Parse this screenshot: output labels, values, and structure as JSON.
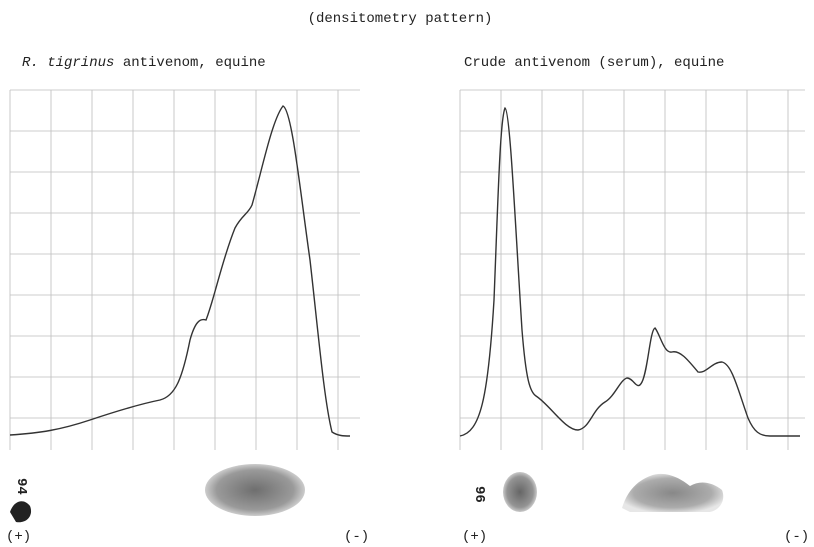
{
  "header": {
    "title": "(densitometry pattern)"
  },
  "panels": [
    {
      "title_italic": "R. tigrinus",
      "title_rest": " antivenom, equine",
      "note": "94",
      "plus": "(+)",
      "minus": "(-)"
    },
    {
      "title_italic": "",
      "title_rest": "Crude antivenom (serum), equine",
      "note": "96",
      "plus": "(+)",
      "minus": "(-)"
    }
  ]
}
